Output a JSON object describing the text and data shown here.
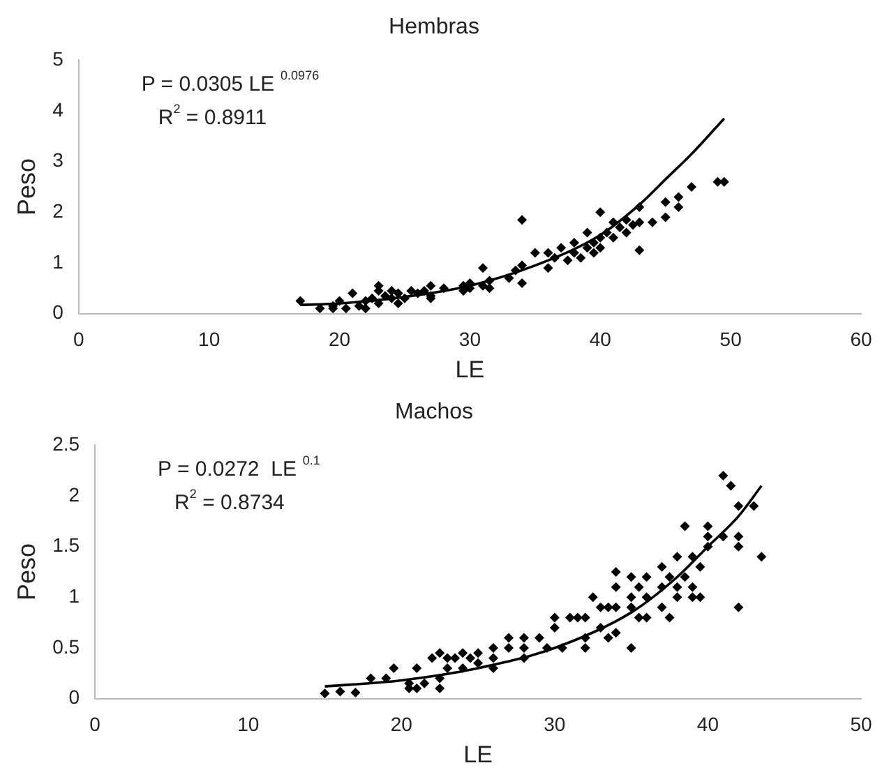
{
  "chart_data": [
    {
      "type": "scatter",
      "title": "Hembras",
      "xlabel": "LE",
      "ylabel": "Peso",
      "xlim": [
        0,
        60
      ],
      "xticks": [
        0,
        10,
        20,
        30,
        40,
        50,
        60
      ],
      "ylim": [
        0,
        5
      ],
      "yticks": [
        0,
        1,
        2,
        3,
        4,
        5
      ],
      "grid": false,
      "legend": false,
      "annotations": [
        "P = 0.0305 LE $^{0.0976}$",
        "R$^{2}$ = 0.8911"
      ],
      "series": [
        {
          "type": "scatter",
          "marker": "diamond",
          "color": "#000000",
          "x": [
            17,
            18.5,
            19.5,
            19.5,
            20,
            20.5,
            21,
            21.5,
            22,
            22,
            22.5,
            23,
            23,
            23,
            23.5,
            24,
            24,
            24.5,
            24.5,
            25,
            25.5,
            26,
            26.5,
            27,
            27,
            27,
            28,
            29.5,
            29.5,
            30,
            30,
            31,
            31,
            31.5,
            31.5,
            33,
            33.5,
            34,
            34,
            34,
            35,
            36,
            36,
            36.5,
            37,
            37.5,
            38,
            38,
            38.5,
            39,
            39,
            39.5,
            39.5,
            40,
            40,
            40,
            40.5,
            41,
            41,
            41.5,
            42,
            42,
            42.5,
            43,
            43,
            43,
            44,
            45,
            45,
            46,
            46,
            47,
            49,
            49.5
          ],
          "values": [
            0.25,
            0.1,
            0.15,
            0.1,
            0.25,
            0.1,
            0.4,
            0.15,
            0.1,
            0.25,
            0.3,
            0.2,
            0.55,
            0.45,
            0.35,
            0.3,
            0.45,
            0.2,
            0.4,
            0.3,
            0.45,
            0.4,
            0.45,
            0.35,
            0.55,
            0.3,
            0.5,
            0.45,
            0.55,
            0.6,
            0.5,
            0.55,
            0.9,
            0.5,
            0.65,
            0.7,
            0.85,
            1.85,
            0.6,
            0.95,
            1.2,
            0.9,
            1.2,
            1.1,
            1.3,
            1.05,
            1.4,
            1.2,
            1.1,
            1.6,
            1.3,
            1.4,
            1.2,
            2.0,
            1.5,
            1.3,
            1.6,
            1.8,
            1.5,
            1.7,
            1.85,
            1.6,
            1.75,
            2.1,
            1.8,
            1.25,
            1.8,
            2.2,
            1.9,
            2.3,
            2.1,
            2.5,
            2.6,
            2.6
          ]
        },
        {
          "type": "line",
          "marker": "none",
          "color": "#000000",
          "x": [
            17,
            20,
            25,
            30,
            35,
            40,
            43,
            45,
            47,
            49.5
          ],
          "values": [
            0.17,
            0.2,
            0.33,
            0.55,
            0.95,
            1.55,
            2.15,
            2.65,
            3.15,
            3.85
          ]
        }
      ]
    },
    {
      "type": "scatter",
      "title": "Machos",
      "xlabel": "LE",
      "ylabel": "Peso",
      "xlim": [
        0,
        50
      ],
      "xticks": [
        0,
        10,
        20,
        30,
        40,
        50
      ],
      "ylim": [
        0,
        2.5
      ],
      "yticks": [
        0,
        0.5,
        1,
        1.5,
        2,
        2.5
      ],
      "grid": false,
      "legend": false,
      "annotations": [
        "P = 0.0272  LE $^{0.1}$",
        "R$^{2}$ = 0.8734"
      ],
      "series": [
        {
          "type": "scatter",
          "marker": "diamond",
          "color": "#000000",
          "x": [
            15,
            16,
            17,
            18,
            19,
            19.5,
            20.5,
            20.5,
            21,
            21,
            21.5,
            22,
            22.5,
            22.5,
            22.5,
            23,
            23,
            23.5,
            24,
            24,
            24.5,
            25,
            25,
            26,
            26,
            26,
            27,
            27,
            28,
            28,
            28,
            29,
            29.5,
            30,
            30,
            30.5,
            31,
            31.5,
            32,
            32,
            32,
            32.5,
            33,
            33,
            33.5,
            33.5,
            34,
            34,
            34,
            34,
            35,
            35,
            35,
            35,
            35.5,
            35.5,
            36,
            36,
            36,
            37,
            37,
            37,
            37.5,
            37.5,
            38,
            38,
            38,
            38.5,
            38.5,
            39,
            39,
            39,
            39.5,
            39.5,
            40,
            40,
            40,
            41,
            41,
            41.5,
            42,
            42,
            42,
            42,
            43,
            43.5
          ],
          "values": [
            0.05,
            0.07,
            0.06,
            0.2,
            0.2,
            0.3,
            0.1,
            0.15,
            0.3,
            0.1,
            0.15,
            0.4,
            0.45,
            0.2,
            0.1,
            0.3,
            0.4,
            0.4,
            0.45,
            0.3,
            0.4,
            0.45,
            0.35,
            0.5,
            0.3,
            0.4,
            0.6,
            0.5,
            0.6,
            0.4,
            0.5,
            0.6,
            0.5,
            0.8,
            0.7,
            0.5,
            0.8,
            0.8,
            0.8,
            0.6,
            0.5,
            1.0,
            0.9,
            0.7,
            0.9,
            0.6,
            1.25,
            1.1,
            0.9,
            0.65,
            1.2,
            1.0,
            0.9,
            0.5,
            0.8,
            1.1,
            1.2,
            1.0,
            0.8,
            1.3,
            1.1,
            0.9,
            0.8,
            1.2,
            1.4,
            1.1,
            1.0,
            1.7,
            1.2,
            1.4,
            1.1,
            1.0,
            1.3,
            1.0,
            1.7,
            1.6,
            1.5,
            2.2,
            1.6,
            2.1,
            1.9,
            1.6,
            1.5,
            0.9,
            1.9,
            1.4
          ]
        },
        {
          "type": "line",
          "marker": "none",
          "color": "#000000",
          "x": [
            15,
            20,
            25,
            30,
            35,
            38,
            40,
            42,
            43.5
          ],
          "values": [
            0.12,
            0.18,
            0.3,
            0.5,
            0.85,
            1.2,
            1.5,
            1.8,
            2.1
          ]
        }
      ]
    }
  ]
}
